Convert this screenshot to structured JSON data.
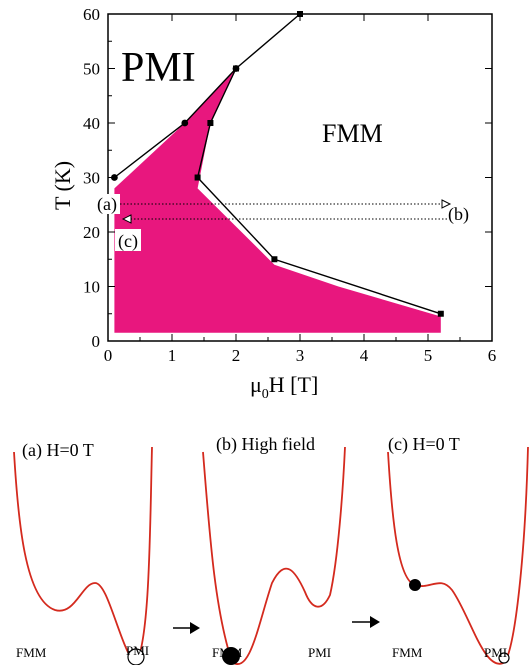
{
  "chart_data": {
    "type": "line",
    "title": "",
    "xlabel": "μ0H  [T]",
    "ylabel": "T  (K)",
    "xlim": [
      0,
      6
    ],
    "ylim": [
      0,
      60
    ],
    "xticks": [
      "0",
      "1",
      "2",
      "3",
      "4",
      "5",
      "6"
    ],
    "yticks": [
      "0",
      "10",
      "20",
      "30",
      "40",
      "50",
      "60"
    ],
    "series": [
      {
        "marker": "circle",
        "x": [
          0.1,
          1.2,
          2.0
        ],
        "y": [
          30,
          40,
          50
        ]
      },
      {
        "marker": "square",
        "x": [
          3.0,
          2.0,
          1.6,
          1.4,
          2.6,
          5.2
        ],
        "y": [
          60,
          50,
          40,
          30,
          15,
          5
        ]
      }
    ],
    "shaded_region": {
      "color": "#e8177e",
      "x": [
        0.1,
        0.1,
        1.2,
        2.0,
        1.6,
        1.4,
        2.6,
        3.6,
        5.2,
        5.2
      ],
      "y": [
        1.5,
        28,
        40,
        50,
        40,
        28,
        14,
        10,
        4.5,
        1.5
      ]
    },
    "region_labels": {
      "pmi": "PMI",
      "fmm": "FMM"
    },
    "path_labels": {
      "a": "(a)",
      "b": "(b)",
      "c": "(c)"
    },
    "path_lines_y": [
      25,
      22
    ]
  },
  "panels": [
    {
      "caption": "(a)   H=0 T",
      "left_label": "FMM",
      "right_label": "PMI"
    },
    {
      "caption": "(b)   High field",
      "left_label": "FMM",
      "right_label": "PMI"
    },
    {
      "caption": "(c)   H=0 T",
      "left_label": "FMM",
      "right_label": "PMI"
    }
  ],
  "colors": {
    "curve": "#d42a1e",
    "shade": "#e8177e"
  }
}
